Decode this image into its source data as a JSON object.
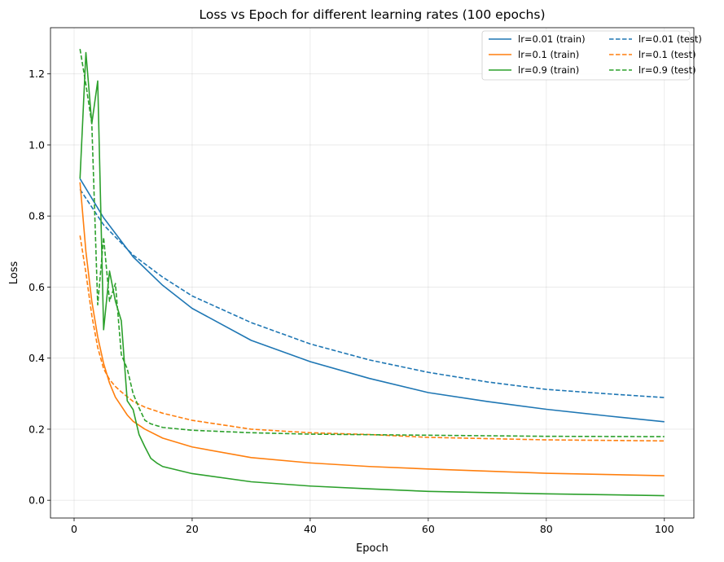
{
  "chart_data": {
    "type": "line",
    "title": "Loss vs Epoch for different learning rates (100 epochs)",
    "xlabel": "Epoch",
    "ylabel": "Loss",
    "xlim": [
      -4,
      105
    ],
    "ylim": [
      -0.05,
      1.33
    ],
    "xticks": [
      0,
      20,
      40,
      60,
      80,
      100
    ],
    "yticks": [
      0.0,
      0.2,
      0.4,
      0.6,
      0.8,
      1.0,
      1.2
    ],
    "grid": true,
    "legend": {
      "placement": "top-right",
      "columns": 2
    },
    "series": [
      {
        "name": "lr=0.01 (train)",
        "color": "#1f77b4",
        "style": "solid",
        "x": [
          1,
          5,
          10,
          15,
          20,
          30,
          40,
          50,
          60,
          70,
          80,
          90,
          100
        ],
        "y": [
          0.905,
          0.795,
          0.685,
          0.605,
          0.54,
          0.45,
          0.39,
          0.343,
          0.303,
          0.278,
          0.256,
          0.238,
          0.221
        ]
      },
      {
        "name": "lr=0.01 (test)",
        "color": "#1f77b4",
        "style": "dashed",
        "x": [
          1,
          5,
          10,
          15,
          20,
          30,
          40,
          50,
          60,
          70,
          80,
          90,
          100
        ],
        "y": [
          0.875,
          0.775,
          0.69,
          0.628,
          0.575,
          0.5,
          0.44,
          0.395,
          0.36,
          0.333,
          0.312,
          0.3,
          0.289
        ]
      },
      {
        "name": "lr=0.1 (train)",
        "color": "#ff7f0e",
        "style": "solid",
        "x": [
          1,
          2,
          3,
          4,
          5,
          6,
          7,
          8,
          9,
          10,
          12,
          15,
          20,
          30,
          40,
          50,
          60,
          80,
          100
        ],
        "y": [
          0.895,
          0.7,
          0.56,
          0.46,
          0.385,
          0.33,
          0.29,
          0.265,
          0.24,
          0.222,
          0.2,
          0.175,
          0.15,
          0.12,
          0.105,
          0.095,
          0.088,
          0.076,
          0.069
        ]
      },
      {
        "name": "lr=0.1 (test)",
        "color": "#ff7f0e",
        "style": "dashed",
        "x": [
          1,
          2,
          3,
          4,
          5,
          6,
          7,
          8,
          10,
          12,
          15,
          20,
          30,
          40,
          50,
          60,
          80,
          100
        ],
        "y": [
          0.745,
          0.64,
          0.52,
          0.43,
          0.37,
          0.34,
          0.32,
          0.305,
          0.278,
          0.262,
          0.245,
          0.225,
          0.2,
          0.19,
          0.185,
          0.177,
          0.17,
          0.167
        ]
      },
      {
        "name": "lr=0.9 (train)",
        "color": "#2ca02c",
        "style": "solid",
        "x": [
          1,
          2,
          3,
          4,
          5,
          6,
          7,
          8,
          9,
          10,
          11,
          12,
          13,
          14,
          15,
          20,
          30,
          40,
          50,
          60,
          80,
          100
        ],
        "y": [
          0.905,
          1.26,
          1.06,
          1.18,
          0.48,
          0.645,
          0.56,
          0.505,
          0.28,
          0.255,
          0.185,
          0.15,
          0.118,
          0.105,
          0.095,
          0.075,
          0.052,
          0.04,
          0.032,
          0.025,
          0.018,
          0.013
        ]
      },
      {
        "name": "lr=0.9 (test)",
        "color": "#2ca02c",
        "style": "dashed",
        "x": [
          1,
          2,
          3,
          4,
          5,
          6,
          7,
          8,
          9,
          10,
          11,
          12,
          13,
          14,
          15,
          20,
          30,
          40,
          60,
          80,
          100
        ],
        "y": [
          1.27,
          1.17,
          1.06,
          0.55,
          0.74,
          0.56,
          0.61,
          0.41,
          0.37,
          0.3,
          0.26,
          0.225,
          0.215,
          0.21,
          0.205,
          0.197,
          0.19,
          0.186,
          0.183,
          0.18,
          0.179
        ]
      }
    ]
  }
}
